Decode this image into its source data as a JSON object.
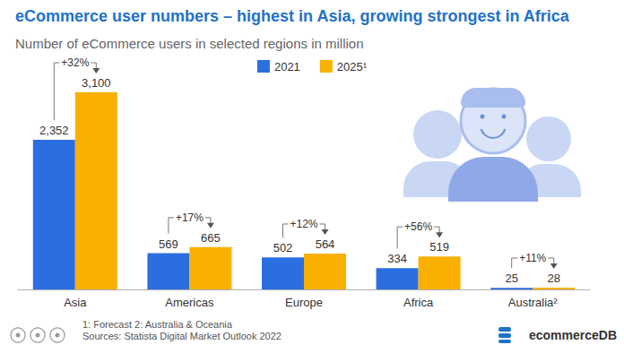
{
  "chart_data": {
    "type": "bar",
    "title": "eCommerce user numbers – highest in Asia, growing strongest in Africa",
    "subtitle": "Number of eCommerce users in selected regions in million",
    "categories": [
      "Asia",
      "Americas",
      "Europe",
      "Africa",
      "Australia²"
    ],
    "series": [
      {
        "name": "2021",
        "color": "#2b6ee0",
        "values": [
          2352,
          569,
          502,
          334,
          25
        ],
        "value_labels": [
          "2,352",
          "569",
          "502",
          "334",
          "25"
        ]
      },
      {
        "name": "2025¹",
        "color": "#f9b000",
        "values": [
          3100,
          665,
          564,
          519,
          28
        ],
        "value_labels": [
          "3,100",
          "665",
          "564",
          "519",
          "28"
        ]
      }
    ],
    "ylim": [
      0,
      3100
    ],
    "grid": false,
    "tick_labels": "x",
    "legend": "top",
    "data_labels": true,
    "annotations": [
      {
        "category": "Asia",
        "text": "+32%"
      },
      {
        "category": "Americas",
        "text": "+17%"
      },
      {
        "category": "Europe",
        "text": "+12%"
      },
      {
        "category": "Africa",
        "text": "+56%"
      },
      {
        "category": "Australia²",
        "text": "+11%"
      }
    ],
    "footnotes": [
      "1: Forecast 2: Australia & Oceania",
      "Sources: Statista Digital Market Outlook 2022"
    ],
    "brand": "ecommerceDB"
  }
}
